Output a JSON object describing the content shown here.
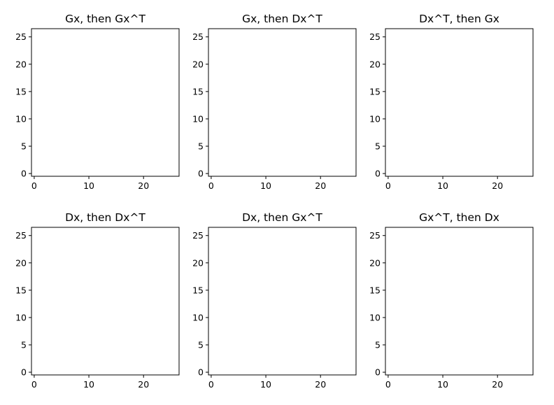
{
  "chart_data": [
    {
      "type": "heatmap",
      "title": "Gx, then Gx^T",
      "colormap": "gray",
      "size": 27,
      "pattern": "gauss_x*gauss_y",
      "xticks": [
        0,
        10,
        20
      ],
      "yticks": [
        0,
        5,
        10,
        15,
        20,
        25
      ],
      "xlim": [
        -0.5,
        26.5
      ],
      "ylim": [
        26.5,
        -0.5
      ]
    },
    {
      "type": "heatmap",
      "title": "Gx, then Dx^T",
      "colormap": "gray",
      "size": 27,
      "pattern": "gauss_x*deriv_y",
      "xticks": [
        0,
        10,
        20
      ],
      "yticks": [
        0,
        5,
        10,
        15,
        20,
        25
      ],
      "xlim": [
        -0.5,
        26.5
      ],
      "ylim": [
        26.5,
        -0.5
      ]
    },
    {
      "type": "heatmap",
      "title": "Dx^T, then Gx",
      "colormap": "gray",
      "size": 27,
      "pattern": "gauss_x*deriv_y",
      "xticks": [
        0,
        10,
        20
      ],
      "yticks": [
        0,
        5,
        10,
        15,
        20,
        25
      ],
      "xlim": [
        -0.5,
        26.5
      ],
      "ylim": [
        26.5,
        -0.5
      ]
    },
    {
      "type": "heatmap",
      "title": "Dx, then Dx^T",
      "colormap": "gray",
      "size": 27,
      "pattern": "deriv_x*deriv_y",
      "xticks": [
        0,
        10,
        20
      ],
      "yticks": [
        0,
        5,
        10,
        15,
        20,
        25
      ],
      "xlim": [
        -0.5,
        26.5
      ],
      "ylim": [
        26.5,
        -0.5
      ]
    },
    {
      "type": "heatmap",
      "title": "Dx, then Gx^T",
      "colormap": "gray",
      "size": 27,
      "pattern": "deriv_x*gauss_y",
      "xticks": [
        0,
        10,
        20
      ],
      "yticks": [
        0,
        5,
        10,
        15,
        20,
        25
      ],
      "xlim": [
        -0.5,
        26.5
      ],
      "ylim": [
        26.5,
        -0.5
      ]
    },
    {
      "type": "heatmap",
      "title": "Gx^T, then Dx",
      "colormap": "gray",
      "size": 27,
      "pattern": "deriv_x*gauss_y",
      "xticks": [
        0,
        10,
        20
      ],
      "yticks": [
        0,
        5,
        10,
        15,
        20,
        25
      ],
      "xlim": [
        -0.5,
        26.5
      ],
      "ylim": [
        26.5,
        -0.5
      ]
    }
  ]
}
